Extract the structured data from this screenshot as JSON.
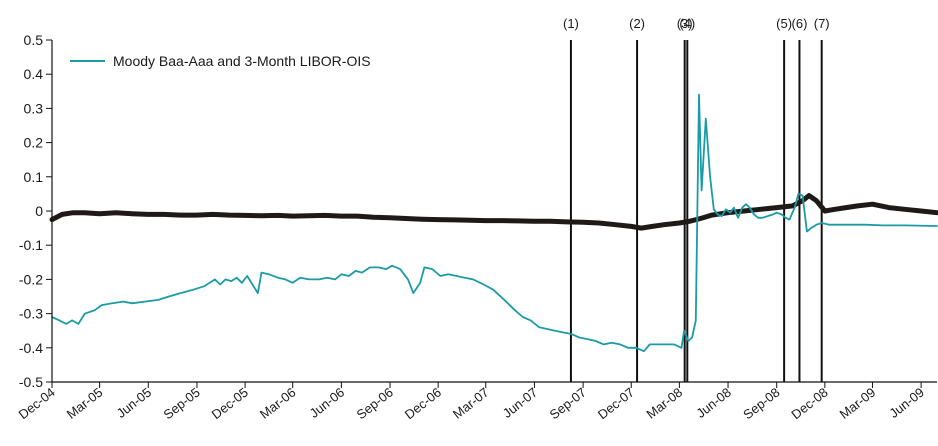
{
  "chart_data": {
    "type": "line",
    "title": "",
    "xlabel": "",
    "ylabel": "",
    "ylim": [
      -0.5,
      0.5
    ],
    "yticks": [
      "0.5",
      "0.4",
      "0.3",
      "0.2",
      "0.1",
      "0",
      "-0.1",
      "-0.2",
      "-0.3",
      "-0.4",
      "-0.5"
    ],
    "ytick_values": [
      0.5,
      0.4,
      0.3,
      0.2,
      0.1,
      0,
      -0.1,
      -0.2,
      -0.3,
      -0.4,
      -0.5
    ],
    "xticks": [
      "Dec-04",
      "Mar-05",
      "Jun-05",
      "Sep-05",
      "Dec-05",
      "Mar-06",
      "Jun-06",
      "Sep-06",
      "Dec-06",
      "Mar-07",
      "Jun-07",
      "Sep-07",
      "Dec-07",
      "Mar-08",
      "Jun-08",
      "Sep-08",
      "Dec-08",
      "Mar-09",
      "Jun-09"
    ],
    "x_start": "2004-12-01",
    "x_end": "2009-07-01",
    "legend": {
      "position": "top-left"
    },
    "grid": false,
    "events": [
      {
        "label": "(1)",
        "date": "2007-08-09"
      },
      {
        "label": "(2)",
        "date": "2007-12-12"
      },
      {
        "label": "(3)",
        "date": "2008-03-11"
      },
      {
        "label": "(4)",
        "date": "2008-03-16"
      },
      {
        "label": "(5)",
        "date": "2008-09-15"
      },
      {
        "label": "(6)",
        "date": "2008-10-14"
      },
      {
        "label": "(7)",
        "date": "2008-11-25"
      }
    ],
    "series": [
      {
        "name": "Moody Baa-Aaa and 3-Month LIBOR-OIS",
        "color": "#1a9ba5",
        "width": 1.8,
        "points": [
          [
            "2004-12-01",
            -0.31
          ],
          [
            "2004-12-15",
            -0.32
          ],
          [
            "2004-12-28",
            -0.33
          ],
          [
            "2005-01-08",
            -0.32
          ],
          [
            "2005-01-20",
            -0.33
          ],
          [
            "2005-02-01",
            -0.3
          ],
          [
            "2005-02-20",
            -0.29
          ],
          [
            "2005-03-05",
            -0.275
          ],
          [
            "2005-03-25",
            -0.27
          ],
          [
            "2005-04-15",
            -0.265
          ],
          [
            "2005-05-01",
            -0.27
          ],
          [
            "2005-05-25",
            -0.265
          ],
          [
            "2005-06-20",
            -0.26
          ],
          [
            "2005-07-10",
            -0.25
          ],
          [
            "2005-08-01",
            -0.24
          ],
          [
            "2005-08-25",
            -0.23
          ],
          [
            "2005-09-15",
            -0.22
          ],
          [
            "2005-10-05",
            -0.2
          ],
          [
            "2005-10-15",
            -0.215
          ],
          [
            "2005-10-25",
            -0.2
          ],
          [
            "2005-11-05",
            -0.205
          ],
          [
            "2005-11-15",
            -0.195
          ],
          [
            "2005-11-25",
            -0.21
          ],
          [
            "2005-12-05",
            -0.19
          ],
          [
            "2005-12-15",
            -0.215
          ],
          [
            "2005-12-25",
            -0.24
          ],
          [
            "2006-01-01",
            -0.18
          ],
          [
            "2006-01-15",
            -0.185
          ],
          [
            "2006-02-01",
            -0.195
          ],
          [
            "2006-02-15",
            -0.2
          ],
          [
            "2006-03-01",
            -0.21
          ],
          [
            "2006-03-15",
            -0.195
          ],
          [
            "2006-04-01",
            -0.2
          ],
          [
            "2006-04-20",
            -0.2
          ],
          [
            "2006-05-05",
            -0.195
          ],
          [
            "2006-05-20",
            -0.2
          ],
          [
            "2006-06-01",
            -0.185
          ],
          [
            "2006-06-15",
            -0.19
          ],
          [
            "2006-06-28",
            -0.175
          ],
          [
            "2006-07-10",
            -0.18
          ],
          [
            "2006-07-25",
            -0.165
          ],
          [
            "2006-08-10",
            -0.165
          ],
          [
            "2006-08-25",
            -0.17
          ],
          [
            "2006-09-05",
            -0.16
          ],
          [
            "2006-09-20",
            -0.17
          ],
          [
            "2006-10-05",
            -0.2
          ],
          [
            "2006-10-15",
            -0.24
          ],
          [
            "2006-10-28",
            -0.21
          ],
          [
            "2006-11-05",
            -0.165
          ],
          [
            "2006-11-20",
            -0.17
          ],
          [
            "2006-12-05",
            -0.19
          ],
          [
            "2006-12-20",
            -0.185
          ],
          [
            "2007-01-05",
            -0.19
          ],
          [
            "2007-01-20",
            -0.195
          ],
          [
            "2007-02-05",
            -0.2
          ],
          [
            "2007-02-25",
            -0.215
          ],
          [
            "2007-03-15",
            -0.23
          ],
          [
            "2007-04-05",
            -0.26
          ],
          [
            "2007-04-25",
            -0.29
          ],
          [
            "2007-05-10",
            -0.31
          ],
          [
            "2007-05-25",
            -0.32
          ],
          [
            "2007-06-10",
            -0.34
          ],
          [
            "2007-06-25",
            -0.345
          ],
          [
            "2007-07-10",
            -0.35
          ],
          [
            "2007-07-25",
            -0.355
          ],
          [
            "2007-08-10",
            -0.36
          ],
          [
            "2007-08-25",
            -0.37
          ],
          [
            "2007-09-10",
            -0.375
          ],
          [
            "2007-09-25",
            -0.38
          ],
          [
            "2007-10-10",
            -0.39
          ],
          [
            "2007-10-25",
            -0.385
          ],
          [
            "2007-11-10",
            -0.39
          ],
          [
            "2007-11-25",
            -0.4
          ],
          [
            "2007-12-10",
            -0.4
          ],
          [
            "2007-12-25",
            -0.41
          ],
          [
            "2008-01-05",
            -0.39
          ],
          [
            "2008-01-20",
            -0.39
          ],
          [
            "2008-02-05",
            -0.39
          ],
          [
            "2008-02-20",
            -0.39
          ],
          [
            "2008-03-05",
            -0.4
          ]
        ]
      },
      {
        "name": "",
        "color": "#1f1a17",
        "width": 5,
        "points": [
          [
            "2004-12-01",
            -0.025
          ],
          [
            "2004-12-20",
            -0.01
          ],
          [
            "2005-01-10",
            -0.005
          ],
          [
            "2005-02-01",
            -0.005
          ],
          [
            "2005-03-01",
            -0.008
          ],
          [
            "2005-04-01",
            -0.005
          ],
          [
            "2005-05-01",
            -0.008
          ],
          [
            "2005-06-01",
            -0.01
          ],
          [
            "2005-07-01",
            -0.01
          ],
          [
            "2005-08-01",
            -0.012
          ],
          [
            "2005-09-01",
            -0.012
          ],
          [
            "2005-10-01",
            -0.01
          ],
          [
            "2005-11-01",
            -0.012
          ],
          [
            "2005-12-01",
            -0.013
          ],
          [
            "2006-01-01",
            -0.014
          ],
          [
            "2006-02-01",
            -0.013
          ],
          [
            "2006-03-01",
            -0.015
          ],
          [
            "2006-04-01",
            -0.014
          ],
          [
            "2006-05-01",
            -0.013
          ],
          [
            "2006-06-01",
            -0.015
          ],
          [
            "2006-07-01",
            -0.015
          ],
          [
            "2006-08-01",
            -0.018
          ],
          [
            "2006-09-01",
            -0.02
          ],
          [
            "2006-10-01",
            -0.022
          ],
          [
            "2006-11-01",
            -0.024
          ],
          [
            "2006-12-01",
            -0.025
          ],
          [
            "2007-01-01",
            -0.026
          ],
          [
            "2007-02-01",
            -0.027
          ],
          [
            "2007-03-01",
            -0.028
          ],
          [
            "2007-04-01",
            -0.028
          ],
          [
            "2007-05-01",
            -0.029
          ],
          [
            "2007-06-01",
            -0.03
          ],
          [
            "2007-07-01",
            -0.03
          ],
          [
            "2007-08-01",
            -0.032
          ],
          [
            "2007-09-01",
            -0.033
          ],
          [
            "2007-10-01",
            -0.035
          ],
          [
            "2007-11-01",
            -0.04
          ],
          [
            "2007-12-01",
            -0.045
          ],
          [
            "2007-12-20",
            -0.05
          ],
          [
            "2008-01-10",
            -0.045
          ],
          [
            "2008-02-01",
            -0.04
          ],
          [
            "2008-03-01",
            -0.035
          ],
          [
            "2008-03-20",
            -0.03
          ],
          [
            "2008-04-10",
            -0.022
          ],
          [
            "2008-05-01",
            -0.012
          ],
          [
            "2008-06-01",
            -0.005
          ],
          [
            "2008-07-01",
            0.0
          ],
          [
            "2008-08-01",
            0.005
          ],
          [
            "2008-09-01",
            0.01
          ],
          [
            "2008-10-01",
            0.015
          ],
          [
            "2008-10-20",
            0.03
          ],
          [
            "2008-11-01",
            0.045
          ],
          [
            "2008-11-15",
            0.03
          ],
          [
            "2008-12-01",
            0.0
          ],
          [
            "2008-12-20",
            0.005
          ],
          [
            "2009-01-10",
            0.01
          ],
          [
            "2009-02-01",
            0.015
          ],
          [
            "2009-03-01",
            0.02
          ],
          [
            "2009-04-01",
            0.01
          ],
          [
            "2009-05-01",
            0.005
          ],
          [
            "2009-06-01",
            0.0
          ],
          [
            "2009-07-01",
            -0.005
          ]
        ]
      },
      {
        "name": "",
        "color": "#1a9ba5",
        "width": 1.8,
        "points": [
          [
            "2008-03-05",
            -0.4
          ],
          [
            "2008-03-10",
            -0.35
          ],
          [
            "2008-03-18",
            -0.38
          ],
          [
            "2008-03-25",
            -0.37
          ],
          [
            "2008-04-01",
            -0.32
          ],
          [
            "2008-04-07",
            0.34
          ],
          [
            "2008-04-12",
            0.06
          ],
          [
            "2008-04-20",
            0.27
          ],
          [
            "2008-04-28",
            0.1
          ],
          [
            "2008-05-05",
            0.005
          ],
          [
            "2008-05-12",
            -0.01
          ],
          [
            "2008-05-20",
            -0.015
          ],
          [
            "2008-05-28",
            0.005
          ],
          [
            "2008-06-05",
            -0.005
          ],
          [
            "2008-06-12",
            0.01
          ],
          [
            "2008-06-20",
            -0.02
          ],
          [
            "2008-06-28",
            0.01
          ],
          [
            "2008-07-05",
            0.02
          ],
          [
            "2008-07-12",
            0.01
          ],
          [
            "2008-07-20",
            -0.01
          ],
          [
            "2008-07-28",
            -0.02
          ],
          [
            "2008-08-05",
            -0.02
          ],
          [
            "2008-08-15",
            -0.015
          ],
          [
            "2008-08-25",
            -0.01
          ],
          [
            "2008-09-01",
            -0.005
          ],
          [
            "2008-09-10",
            -0.01
          ],
          [
            "2008-09-18",
            -0.02
          ],
          [
            "2008-09-25",
            -0.025
          ],
          [
            "2008-10-05",
            0.01
          ],
          [
            "2008-10-12",
            0.05
          ],
          [
            "2008-10-20",
            0.045
          ],
          [
            "2008-10-28",
            -0.06
          ],
          [
            "2008-11-05",
            -0.05
          ],
          [
            "2008-11-15",
            -0.04
          ],
          [
            "2008-11-25",
            -0.035
          ],
          [
            "2008-12-10",
            -0.04
          ],
          [
            "2009-01-10",
            -0.04
          ],
          [
            "2009-02-15",
            -0.04
          ],
          [
            "2009-03-20",
            -0.042
          ],
          [
            "2009-05-01",
            -0.042
          ],
          [
            "2009-07-01",
            -0.044
          ]
        ]
      }
    ]
  }
}
